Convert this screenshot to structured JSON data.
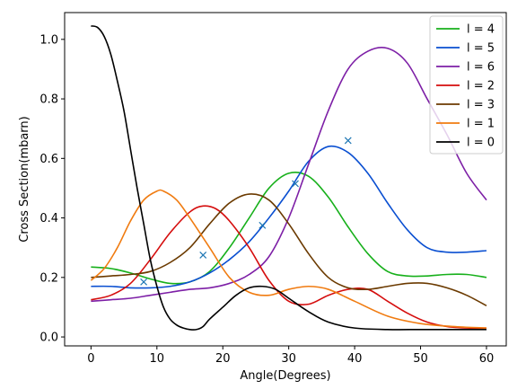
{
  "chart_data": {
    "type": "line",
    "xlabel": "Angle(Degrees)",
    "ylabel": "Cross Section(mbarn)",
    "xlim": [
      -4,
      63
    ],
    "ylim": [
      -0.03,
      1.09
    ],
    "xticks": [
      0,
      10,
      20,
      30,
      40,
      50,
      60
    ],
    "yticks": [
      0.0,
      0.2,
      0.4,
      0.6,
      0.8,
      1.0
    ],
    "grid": false,
    "legend_position": "top-right",
    "series": [
      {
        "name": "l = 4",
        "color": "#17b01b",
        "x": [
          0,
          3,
          6,
          9,
          12,
          15,
          18,
          21,
          24,
          27,
          30,
          33,
          36,
          39,
          42,
          45,
          48,
          51,
          54,
          57,
          60
        ],
        "y": [
          0.235,
          0.23,
          0.215,
          0.195,
          0.18,
          0.185,
          0.22,
          0.3,
          0.4,
          0.5,
          0.55,
          0.54,
          0.47,
          0.37,
          0.28,
          0.22,
          0.205,
          0.205,
          0.21,
          0.21,
          0.2
        ]
      },
      {
        "name": "l = 5",
        "color": "#0a4fd1",
        "x": [
          0,
          3,
          6,
          9,
          12,
          15,
          18,
          21,
          24,
          27,
          30,
          33,
          36,
          39,
          42,
          45,
          48,
          51,
          54,
          57,
          60
        ],
        "y": [
          0.17,
          0.17,
          0.165,
          0.165,
          0.17,
          0.185,
          0.215,
          0.26,
          0.32,
          0.4,
          0.49,
          0.59,
          0.64,
          0.62,
          0.55,
          0.45,
          0.36,
          0.3,
          0.285,
          0.285,
          0.29
        ]
      },
      {
        "name": "l = 6",
        "color": "#7d1fa6",
        "x": [
          0,
          3,
          6,
          9,
          12,
          15,
          18,
          21,
          24,
          27,
          30,
          33,
          36,
          39,
          42,
          45,
          48,
          51,
          54,
          57,
          60
        ],
        "y": [
          0.12,
          0.125,
          0.13,
          0.14,
          0.15,
          0.16,
          0.165,
          0.18,
          0.21,
          0.27,
          0.4,
          0.58,
          0.76,
          0.9,
          0.96,
          0.97,
          0.92,
          0.8,
          0.68,
          0.55,
          0.46
        ]
      },
      {
        "name": "l = 2",
        "color": "#d50d0d",
        "x": [
          0,
          3,
          6,
          9,
          12,
          15,
          17,
          19,
          21,
          24,
          27,
          30,
          33,
          36,
          39,
          42,
          45,
          48,
          51,
          54,
          57,
          60
        ],
        "y": [
          0.125,
          0.14,
          0.18,
          0.26,
          0.35,
          0.42,
          0.44,
          0.43,
          0.39,
          0.3,
          0.19,
          0.12,
          0.11,
          0.14,
          0.16,
          0.16,
          0.12,
          0.08,
          0.05,
          0.035,
          0.03,
          0.03
        ]
      },
      {
        "name": "l = 3",
        "color": "#6b3a00",
        "x": [
          0,
          3,
          6,
          9,
          12,
          15,
          18,
          21,
          24,
          27,
          30,
          33,
          36,
          39,
          42,
          45,
          48,
          51,
          54,
          57,
          60
        ],
        "y": [
          0.2,
          0.205,
          0.21,
          0.22,
          0.25,
          0.3,
          0.38,
          0.45,
          0.48,
          0.46,
          0.38,
          0.28,
          0.2,
          0.165,
          0.16,
          0.17,
          0.18,
          0.18,
          0.165,
          0.14,
          0.105
        ]
      },
      {
        "name": "l = 1",
        "color": "#f07b10",
        "x": [
          0,
          2,
          4,
          6,
          8,
          10,
          11,
          13,
          15,
          18,
          21,
          24,
          27,
          30,
          33,
          36,
          40,
          45,
          50,
          55,
          60
        ],
        "y": [
          0.19,
          0.23,
          0.3,
          0.39,
          0.46,
          0.49,
          0.49,
          0.46,
          0.4,
          0.3,
          0.2,
          0.15,
          0.14,
          0.16,
          0.17,
          0.16,
          0.12,
          0.07,
          0.045,
          0.035,
          0.03
        ]
      },
      {
        "name": "l = 0",
        "color": "#000000",
        "x": [
          0,
          1,
          2,
          3,
          4,
          5,
          6,
          7,
          8,
          9,
          10,
          11,
          12,
          13,
          14,
          15,
          16,
          17,
          18,
          20,
          22,
          24,
          26,
          28,
          30,
          33,
          36,
          40,
          45,
          50,
          55,
          60
        ],
        "y": [
          1.045,
          1.04,
          1.01,
          0.95,
          0.86,
          0.76,
          0.63,
          0.5,
          0.38,
          0.26,
          0.17,
          0.1,
          0.06,
          0.04,
          0.03,
          0.025,
          0.025,
          0.035,
          0.06,
          0.1,
          0.14,
          0.165,
          0.17,
          0.16,
          0.13,
          0.085,
          0.05,
          0.03,
          0.025,
          0.025,
          0.025,
          0.025
        ]
      }
    ],
    "markers": {
      "color": "#1f77b4",
      "symbol": "x",
      "x": [
        8,
        17,
        26,
        31,
        39
      ],
      "y": [
        0.185,
        0.275,
        0.375,
        0.515,
        0.66
      ]
    }
  }
}
